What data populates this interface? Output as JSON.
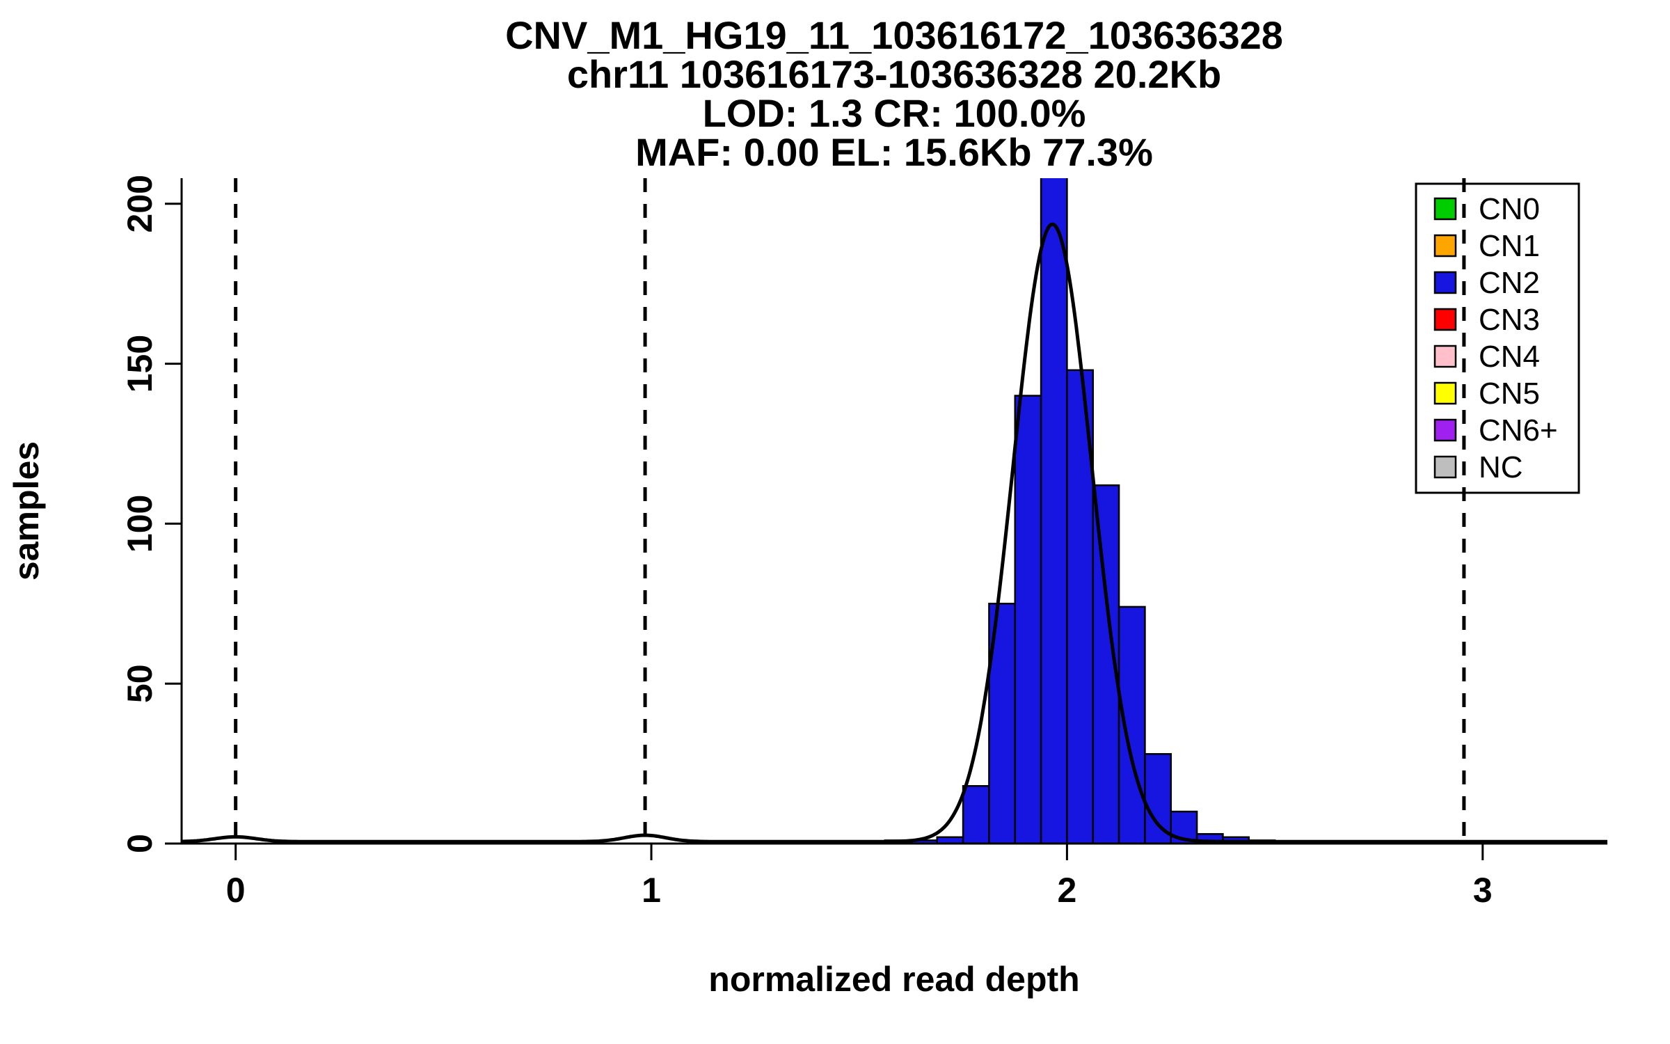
{
  "chart_data": {
    "type": "bar",
    "subtype": "histogram",
    "title": [
      "CNV_M1_HG19_11_103616172_103636328",
      "chr11 103616173-103636328 20.2Kb",
      "LOD: 1.3 CR: 100.0%",
      "MAF: 0.00 EL: 15.6Kb 77.3%"
    ],
    "xlabel": "normalized read depth",
    "ylabel": "samples",
    "xlim": [
      -0.13,
      3.3
    ],
    "ylim": [
      0,
      208
    ],
    "x_ticks": [
      0,
      1,
      2,
      3
    ],
    "y_ticks": [
      0,
      50,
      100,
      150,
      200
    ],
    "grid": false,
    "bar_color": "#1616E0",
    "bar_edge_color": "#000000",
    "bins": {
      "start": 1.5625,
      "width": 0.0625,
      "counts": [
        1,
        1,
        2,
        18,
        75,
        140,
        210,
        148,
        112,
        74,
        28,
        10,
        3,
        2,
        1
      ]
    },
    "dashed_lines_x": [
      0,
      0.985,
      1.97,
      2.955
    ],
    "fit_curve": {
      "color": "#000000",
      "baseline": 0.6,
      "components": [
        {
          "mean": 0.0,
          "amp": 1.5,
          "sd": 0.05
        },
        {
          "mean": 0.985,
          "amp": 2.0,
          "sd": 0.05
        },
        {
          "mean": 1.965,
          "amp": 193,
          "sd": 0.095
        }
      ]
    },
    "legend": {
      "position": "top-right",
      "items": [
        {
          "label": "CN0",
          "color": "#00CD00"
        },
        {
          "label": "CN1",
          "color": "#FFA500"
        },
        {
          "label": "CN2",
          "color": "#1616E0"
        },
        {
          "label": "CN3",
          "color": "#FF0000"
        },
        {
          "label": "CN4",
          "color": "#FFC0CB"
        },
        {
          "label": "CN5",
          "color": "#FFFF00"
        },
        {
          "label": "CN6+",
          "color": "#A020F0"
        },
        {
          "label": "NC",
          "color": "#BEBEBE"
        }
      ]
    }
  }
}
